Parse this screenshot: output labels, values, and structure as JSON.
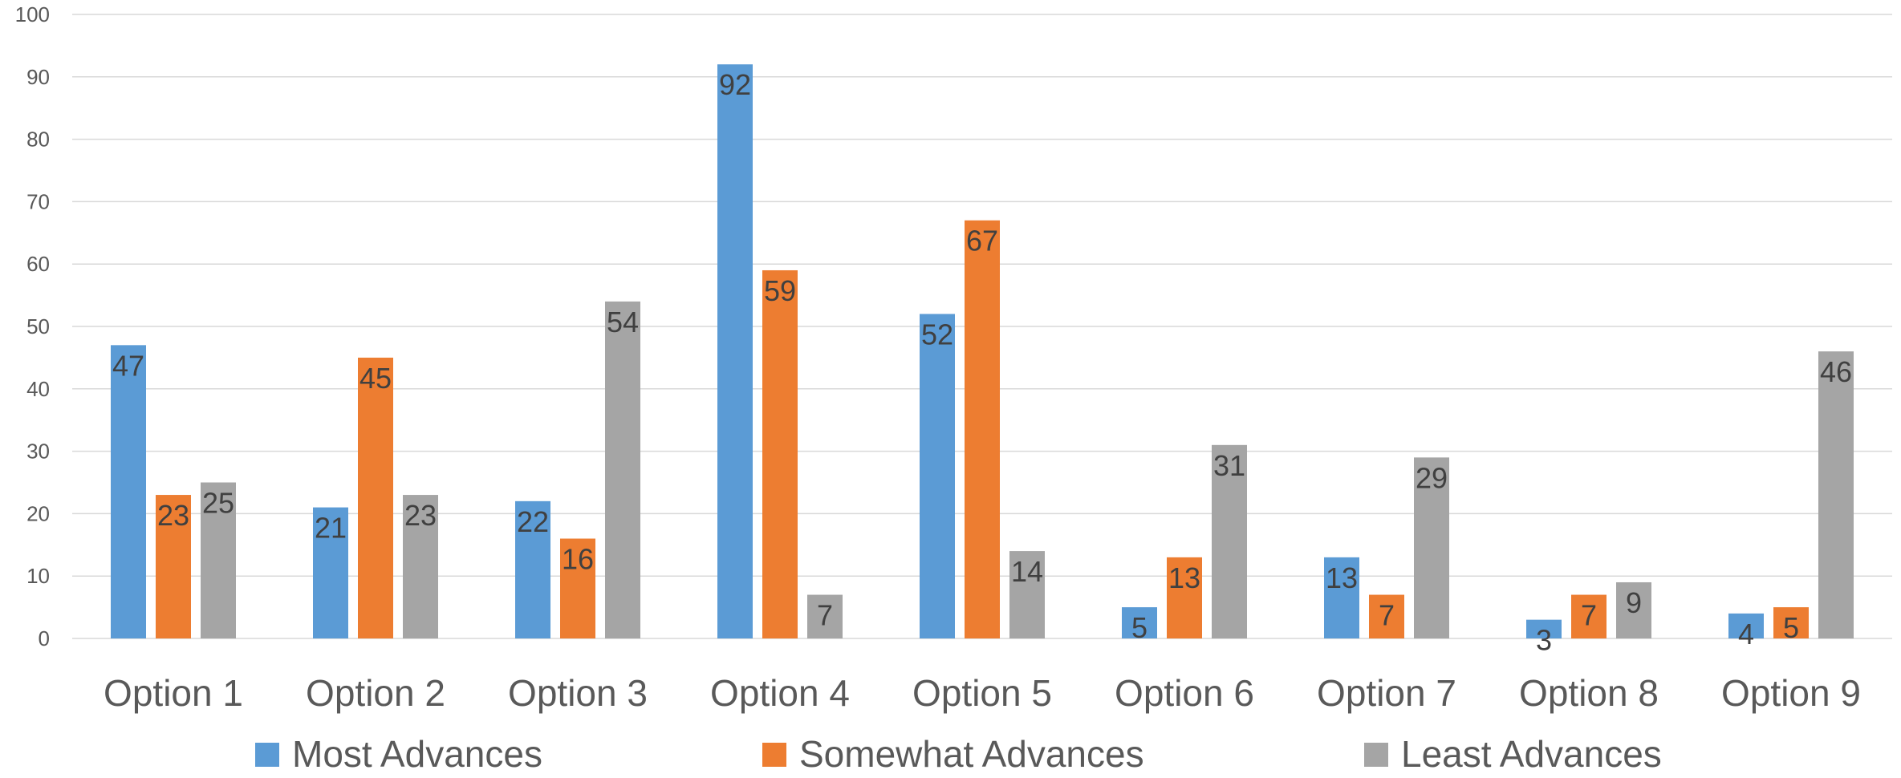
{
  "chart_data": {
    "type": "bar",
    "title": "",
    "xlabel": "",
    "ylabel": "",
    "categories": [
      "Option 1",
      "Option 2",
      "Option 3",
      "Option 4",
      "Option 5",
      "Option 6",
      "Option 7",
      "Option 8",
      "Option 9"
    ],
    "series": [
      {
        "name": "Most Advances",
        "color": "#5B9BD5",
        "values": [
          47,
          21,
          22,
          92,
          52,
          5,
          13,
          3,
          4
        ]
      },
      {
        "name": "Somewhat Advances",
        "color": "#ED7D31",
        "values": [
          23,
          45,
          16,
          59,
          67,
          13,
          7,
          7,
          5
        ]
      },
      {
        "name": "Least Advances",
        "color": "#A5A5A5",
        "values": [
          25,
          23,
          54,
          7,
          14,
          31,
          29,
          9,
          46
        ]
      }
    ],
    "ylim": [
      0,
      100
    ],
    "yticks": [
      0,
      10,
      20,
      30,
      40,
      50,
      60,
      70,
      80,
      90,
      100
    ],
    "grid": true,
    "gridColor": "#D9D9D9",
    "data_labels": true,
    "legend_position": "bottom"
  }
}
